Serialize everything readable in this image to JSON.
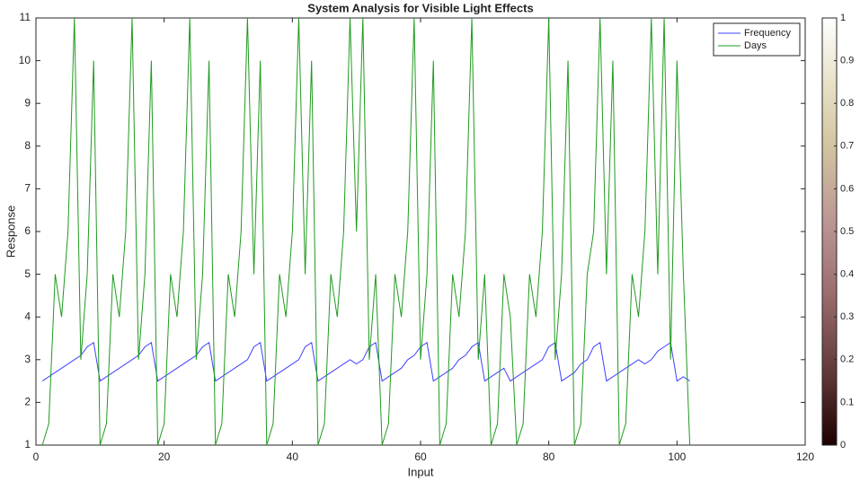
{
  "chart_data": {
    "type": "line",
    "title": "System Analysis for Visible Light Effects",
    "x_label": "Input",
    "y_label": "Response",
    "x": [
      1,
      2,
      3,
      4,
      5,
      6,
      7,
      8,
      9,
      10,
      11,
      12,
      13,
      14,
      15,
      16,
      17,
      18,
      19,
      20,
      21,
      22,
      23,
      24,
      25,
      26,
      27,
      28,
      29,
      30,
      31,
      32,
      33,
      34,
      35,
      36,
      37,
      38,
      39,
      40,
      41,
      42,
      43,
      44,
      45,
      46,
      47,
      48,
      49,
      50,
      51,
      52,
      53,
      54,
      55,
      56,
      57,
      58,
      59,
      60,
      61,
      62,
      63,
      64,
      65,
      66,
      67,
      68,
      69,
      70,
      71,
      72,
      73,
      74,
      75,
      76,
      77,
      78,
      79,
      80,
      81,
      82,
      83,
      84,
      85,
      86,
      87,
      88,
      89,
      90,
      91,
      92,
      93,
      94,
      95,
      96,
      97,
      98,
      99,
      100,
      101,
      102
    ],
    "series": [
      {
        "name": "Frequency",
        "color": "#4040ff",
        "values": [
          2.5,
          2.6,
          2.7,
          2.8,
          2.9,
          3.0,
          3.1,
          3.3,
          3.4,
          2.5,
          2.6,
          2.7,
          2.8,
          2.9,
          3.0,
          3.1,
          3.3,
          3.4,
          2.5,
          2.6,
          2.7,
          2.8,
          2.9,
          3.0,
          3.1,
          3.3,
          3.4,
          2.5,
          2.6,
          2.7,
          2.8,
          2.9,
          3.0,
          3.3,
          3.4,
          2.5,
          2.6,
          2.7,
          2.8,
          2.9,
          3.0,
          3.3,
          3.4,
          2.5,
          2.6,
          2.7,
          2.8,
          2.9,
          3.0,
          2.9,
          3.0,
          3.3,
          3.4,
          2.5,
          2.6,
          2.7,
          2.8,
          3.0,
          3.1,
          3.3,
          3.4,
          2.5,
          2.6,
          2.7,
          2.8,
          3.0,
          3.1,
          3.3,
          3.4,
          2.5,
          2.6,
          2.7,
          2.8,
          2.5,
          2.6,
          2.7,
          2.8,
          2.9,
          3.0,
          3.3,
          3.4,
          2.5,
          2.6,
          2.7,
          2.9,
          3.0,
          3.3,
          3.4,
          2.5,
          2.6,
          2.7,
          2.8,
          2.9,
          3.0,
          2.9,
          3.0,
          3.2,
          3.3,
          3.4,
          2.5,
          2.6,
          2.5
        ]
      },
      {
        "name": "Days",
        "color": "#1f9a1f",
        "values": [
          1,
          1.5,
          5,
          4,
          6,
          11,
          3,
          5,
          10,
          1,
          1.5,
          5,
          4,
          6,
          11,
          3,
          5,
          10,
          1,
          1.5,
          5,
          4,
          6,
          11,
          3,
          5,
          10,
          1,
          1.5,
          5,
          4,
          6,
          11,
          5,
          10,
          1,
          1.5,
          5,
          4,
          6,
          11,
          5,
          10,
          1,
          1.5,
          5,
          4,
          6,
          11,
          6,
          11,
          3,
          5,
          1,
          1.5,
          5,
          4,
          6,
          11,
          3,
          5,
          10,
          1,
          1.5,
          5,
          4,
          6,
          11,
          3,
          5,
          1,
          1.5,
          5,
          4,
          1,
          1.5,
          5,
          4,
          6,
          11,
          3,
          5,
          10,
          1,
          1.5,
          5,
          6,
          11,
          5,
          10,
          1,
          1.5,
          5,
          4,
          6,
          11,
          5,
          11,
          3,
          10,
          5,
          1
        ]
      }
    ],
    "xlim": [
      0,
      120
    ],
    "xticks": [
      0,
      20,
      40,
      60,
      80,
      100,
      120
    ],
    "ylim": [
      1,
      11
    ],
    "yticks": [
      1,
      2,
      3,
      4,
      5,
      6,
      7,
      8,
      9,
      10,
      11
    ],
    "grid": false,
    "legend": "top-right",
    "colorbar": {
      "colormap": "pink",
      "lim": [
        0,
        1
      ],
      "ticks": [
        0,
        0.1,
        0.2,
        0.3,
        0.4,
        0.5,
        0.6,
        0.7,
        0.8,
        0.9,
        1
      ]
    }
  }
}
